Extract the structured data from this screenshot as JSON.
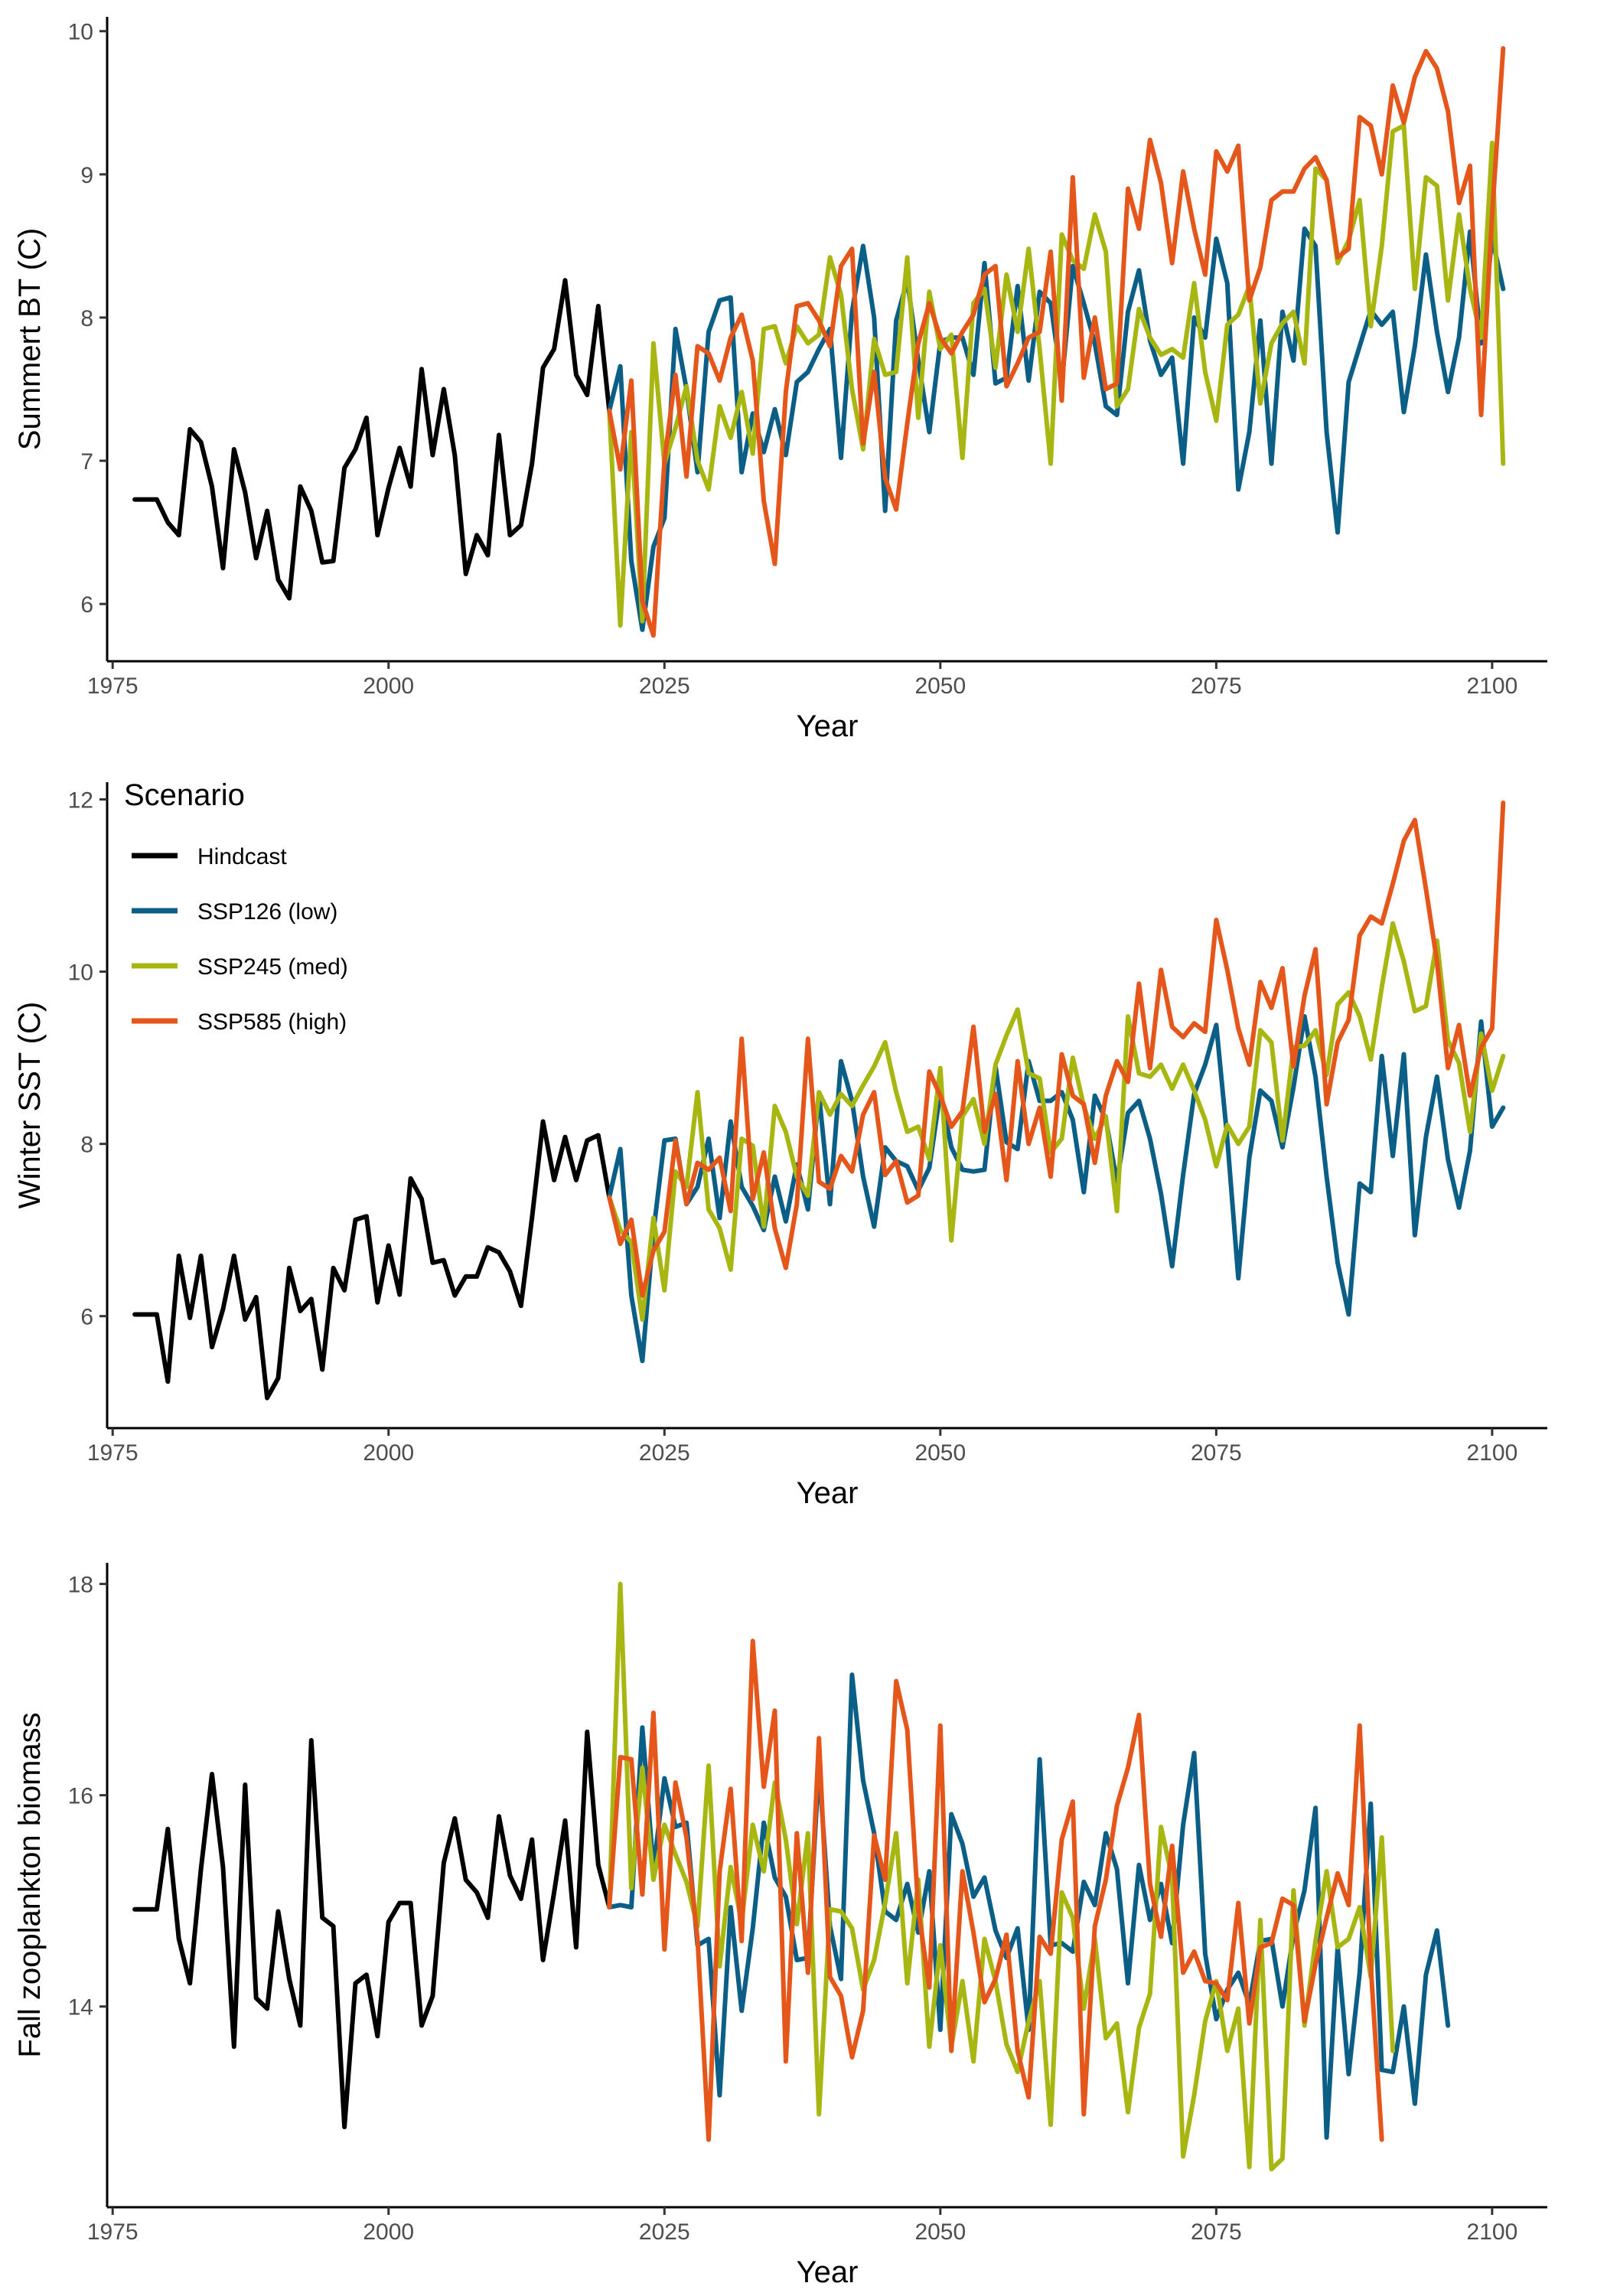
{
  "colors": {
    "Hindcast": "#000000",
    "SSP126 (low)": "#0b5e86",
    "SSP245 (med)": "#a8b611",
    "SSP585 (high)": "#e5561b"
  },
  "legend": {
    "title": "Scenario",
    "items": [
      "Hindcast",
      "SSP126 (low)",
      "SSP245 (med)",
      "SSP585 (high)"
    ]
  },
  "chart_data": [
    {
      "type": "line",
      "xlabel": "Year",
      "ylabel": "Summert BT (C)",
      "xlim": [
        1974.5,
        2105
      ],
      "ylim": [
        5.6,
        10.1
      ],
      "xticks": [
        1975,
        2000,
        2025,
        2050,
        2075,
        2100
      ],
      "yticks": [
        6,
        7,
        8,
        9,
        10
      ],
      "series": [
        {
          "name": "Hindcast",
          "x_start": 1977,
          "values": [
            6.73,
            6.73,
            6.73,
            6.57,
            6.48,
            7.22,
            7.13,
            6.82,
            6.25,
            7.08,
            6.78,
            6.32,
            6.65,
            6.17,
            6.04,
            6.82,
            6.65,
            6.29,
            6.3,
            6.95,
            7.08,
            7.3,
            6.48,
            6.81,
            7.09,
            6.82,
            7.64,
            7.04,
            7.5,
            7.04,
            6.21,
            6.48,
            6.34,
            7.18,
            6.48,
            6.55,
            6.98,
            7.65,
            7.78,
            8.26,
            7.6,
            7.46,
            8.08,
            7.35
          ]
        },
        {
          "name": "SSP126 (low)",
          "x_start": 2020,
          "values": [
            7.35,
            7.66,
            6.3,
            5.82,
            6.4,
            6.6,
            7.92,
            7.5,
            6.92,
            7.9,
            8.12,
            8.14,
            6.92,
            7.33,
            7.06,
            7.36,
            7.04,
            7.55,
            7.62,
            7.78,
            7.92,
            7.02,
            8.04,
            8.5,
            8.0,
            6.65,
            7.98,
            8.26,
            7.7,
            7.2,
            7.83,
            7.86,
            7.86,
            7.6,
            8.38,
            7.54,
            7.58,
            8.22,
            7.56,
            8.18,
            8.1,
            7.54,
            8.36,
            8.1,
            7.82,
            7.38,
            7.32,
            8.04,
            8.33,
            7.84,
            7.6,
            7.72,
            6.98,
            8.0,
            7.86,
            8.55,
            8.24,
            6.8,
            7.2,
            7.98,
            6.98,
            8.04,
            7.7,
            8.62,
            8.5,
            7.2,
            6.5,
            7.55,
            7.8,
            8.05,
            7.95,
            8.04,
            7.34,
            7.8,
            8.44,
            7.9,
            7.48,
            7.86,
            8.6,
            7.82,
            8.56,
            8.2
          ]
        },
        {
          "name": "SSP245 (med)",
          "x_start": 2020,
          "values": [
            7.35,
            5.85,
            7.2,
            5.88,
            7.82,
            6.98,
            7.23,
            7.52,
            7.0,
            6.8,
            7.38,
            7.16,
            7.48,
            7.05,
            7.92,
            7.94,
            7.68,
            7.94,
            7.82,
            7.88,
            8.42,
            8.16,
            7.5,
            7.08,
            7.85,
            7.6,
            7.62,
            8.42,
            7.3,
            8.18,
            7.78,
            7.88,
            7.02,
            8.1,
            8.2,
            7.65,
            8.3,
            7.9,
            8.48,
            7.78,
            6.98,
            8.58,
            8.4,
            8.34,
            8.72,
            8.46,
            7.38,
            7.5,
            8.06,
            7.86,
            7.74,
            7.78,
            7.72,
            8.24,
            7.62,
            7.28,
            7.95,
            8.02,
            8.22,
            7.4,
            7.82,
            7.96,
            8.04,
            7.68,
            9.04,
            8.96,
            8.38,
            8.54,
            8.82,
            7.94,
            8.5,
            9.3,
            9.34,
            8.2,
            8.98,
            8.92,
            8.12,
            8.72,
            8.2,
            7.86,
            9.22,
            6.98
          ]
        },
        {
          "name": "SSP585 (high)",
          "x_start": 2020,
          "values": [
            7.35,
            6.94,
            7.56,
            6.02,
            5.78,
            7.0,
            7.6,
            6.89,
            7.8,
            7.75,
            7.56,
            7.86,
            8.02,
            7.7,
            6.72,
            6.28,
            7.48,
            8.08,
            8.1,
            7.98,
            7.8,
            8.36,
            8.48,
            7.12,
            7.62,
            6.88,
            6.66,
            7.26,
            7.82,
            8.1,
            7.86,
            7.75,
            7.9,
            8.02,
            8.3,
            8.36,
            7.52,
            7.68,
            7.86,
            7.9,
            8.46,
            7.42,
            8.98,
            7.58,
            8.0,
            7.5,
            7.54,
            8.9,
            8.62,
            9.24,
            8.94,
            8.38,
            9.02,
            8.62,
            8.3,
            9.16,
            9.02,
            9.2,
            8.12,
            8.35,
            8.82,
            8.88,
            8.88,
            9.04,
            9.12,
            8.96,
            8.42,
            8.48,
            9.4,
            9.34,
            9.0,
            9.62,
            9.36,
            9.68,
            9.86,
            9.74,
            9.44,
            8.8,
            9.06,
            7.32,
            8.72,
            9.88
          ]
        }
      ]
    },
    {
      "type": "line",
      "xlabel": "Year",
      "ylabel": "Winter SST  (C)",
      "xlim": [
        1974.5,
        2105
      ],
      "ylim": [
        4.7,
        12.2
      ],
      "xticks": [
        1975,
        2000,
        2025,
        2050,
        2075,
        2100
      ],
      "yticks": [
        6,
        8,
        10,
        12
      ],
      "series": [
        {
          "name": "Hindcast",
          "x_start": 1977,
          "values": [
            6.02,
            6.02,
            6.02,
            5.24,
            6.7,
            5.98,
            6.7,
            5.64,
            6.08,
            6.7,
            5.96,
            6.22,
            5.05,
            5.28,
            6.56,
            6.06,
            6.2,
            5.38,
            6.56,
            6.3,
            7.12,
            7.16,
            6.16,
            6.82,
            6.25,
            7.6,
            7.36,
            6.62,
            6.65,
            6.24,
            6.46,
            6.46,
            6.8,
            6.74,
            6.52,
            6.12,
            7.14,
            8.26,
            7.58,
            8.08,
            7.58,
            8.04,
            8.1,
            7.38
          ]
        },
        {
          "name": "SSP126 (low)",
          "x_start": 2020,
          "values": [
            7.38,
            7.94,
            6.24,
            5.48,
            6.98,
            8.04,
            8.06,
            7.3,
            7.5,
            8.06,
            7.14,
            8.26,
            7.5,
            7.28,
            7.0,
            7.62,
            7.1,
            7.76,
            7.24,
            8.58,
            7.3,
            8.96,
            8.5,
            7.62,
            7.04,
            7.96,
            7.8,
            7.74,
            7.46,
            7.72,
            8.6,
            7.96,
            7.7,
            7.68,
            7.7,
            8.9,
            8.02,
            7.94,
            8.96,
            8.5,
            8.5,
            8.6,
            8.28,
            7.44,
            8.56,
            8.28,
            7.56,
            8.36,
            8.5,
            8.06,
            7.42,
            6.58,
            7.64,
            8.58,
            8.92,
            9.38,
            8.06,
            6.44,
            7.84,
            8.62,
            8.5,
            7.96,
            8.66,
            9.48,
            8.78,
            7.62,
            6.62,
            6.02,
            7.54,
            7.44,
            9.02,
            7.86,
            9.04,
            6.94,
            8.08,
            8.78,
            7.82,
            7.26,
            7.92,
            9.42,
            8.2,
            8.42
          ]
        },
        {
          "name": "SSP245 (med)",
          "x_start": 2020,
          "values": [
            7.38,
            7.0,
            6.86,
            5.96,
            7.14,
            6.3,
            7.68,
            7.5,
            8.6,
            7.24,
            7.02,
            6.54,
            8.06,
            7.98,
            7.04,
            8.44,
            8.14,
            7.62,
            7.4,
            8.6,
            8.34,
            8.58,
            8.44,
            8.68,
            8.9,
            9.18,
            8.6,
            8.14,
            8.2,
            7.82,
            8.88,
            6.88,
            8.32,
            8.52,
            8.0,
            8.92,
            9.26,
            9.56,
            8.82,
            8.76,
            7.9,
            8.06,
            9.0,
            8.44,
            8.06,
            8.32,
            7.22,
            9.48,
            8.82,
            8.78,
            8.92,
            8.64,
            8.92,
            8.62,
            8.28,
            7.74,
            8.22,
            8.0,
            8.2,
            9.32,
            9.18,
            8.04,
            9.12,
            9.14,
            9.32,
            8.8,
            9.62,
            9.76,
            9.48,
            8.98,
            9.82,
            10.56,
            10.12,
            9.54,
            9.6,
            10.36,
            9.2,
            8.94,
            8.14,
            9.28,
            8.62,
            9.02
          ]
        },
        {
          "name": "SSP585 (high)",
          "x_start": 2020,
          "values": [
            7.38,
            6.84,
            7.12,
            6.24,
            6.76,
            6.98,
            8.04,
            7.3,
            7.78,
            7.7,
            7.84,
            7.22,
            9.22,
            7.36,
            7.9,
            7.02,
            6.56,
            7.3,
            9.22,
            7.56,
            7.48,
            7.86,
            7.68,
            8.34,
            8.6,
            7.64,
            7.8,
            7.32,
            7.4,
            8.84,
            8.56,
            8.2,
            8.38,
            9.36,
            8.14,
            8.58,
            7.58,
            8.96,
            8.0,
            8.42,
            7.62,
            9.04,
            8.56,
            8.46,
            7.78,
            8.56,
            8.96,
            8.72,
            9.86,
            8.88,
            10.02,
            9.36,
            9.24,
            9.4,
            9.3,
            10.6,
            10.02,
            9.34,
            8.92,
            9.88,
            9.58,
            10.04,
            8.9,
            9.72,
            10.26,
            8.46,
            9.18,
            9.44,
            10.42,
            10.64,
            10.56,
            11.02,
            11.52,
            11.76,
            10.96,
            10.12,
            8.88,
            9.38,
            8.56,
            9.12,
            9.34,
            11.96
          ]
        }
      ]
    },
    {
      "type": "line",
      "xlabel": "Year",
      "ylabel": "Fall zooplankton biomass",
      "xlim": [
        1974.5,
        2105
      ],
      "ylim": [
        12.1,
        18.2
      ],
      "xticks": [
        1975,
        2000,
        2025,
        2050,
        2075,
        2100
      ],
      "yticks": [
        14,
        16,
        18
      ],
      "series": [
        {
          "name": "Hindcast",
          "x_start": 1977,
          "values": [
            14.92,
            14.92,
            14.92,
            15.68,
            14.64,
            14.22,
            15.3,
            16.2,
            15.32,
            13.62,
            16.1,
            14.08,
            13.98,
            14.9,
            14.26,
            13.82,
            16.52,
            14.84,
            14.76,
            12.86,
            14.22,
            14.3,
            13.72,
            14.8,
            14.98,
            14.98,
            13.82,
            14.1,
            15.36,
            15.78,
            15.2,
            15.08,
            14.84,
            15.8,
            15.24,
            15.02,
            15.58,
            14.44,
            15.08,
            15.76,
            14.56,
            16.6,
            15.34,
            14.94
          ]
        },
        {
          "name": "SSP126 (low)",
          "x_start": 2020,
          "values": [
            14.94,
            14.96,
            14.94,
            16.64,
            15.3,
            16.16,
            15.7,
            15.74,
            14.58,
            14.64,
            13.16,
            14.94,
            13.96,
            14.74,
            15.74,
            15.22,
            15.04,
            14.44,
            14.46,
            16.28,
            14.76,
            14.26,
            17.14,
            16.14,
            15.64,
            14.9,
            14.82,
            15.16,
            14.7,
            15.28,
            13.78,
            15.82,
            15.54,
            15.04,
            15.22,
            14.72,
            14.46,
            14.74,
            13.78,
            16.34,
            14.58,
            14.6,
            14.52,
            15.18,
            14.96,
            15.64,
            15.3,
            14.22,
            15.34,
            14.82,
            15.16,
            14.6,
            15.72,
            16.4,
            14.5,
            13.88,
            14.16,
            14.32,
            14.02,
            14.62,
            14.64,
            14.0,
            14.68,
            15.1,
            15.88,
            12.76,
            14.56,
            13.36,
            14.32,
            15.92,
            13.4,
            13.38,
            14.0,
            13.08,
            14.3,
            14.72,
            13.82
          ]
        },
        {
          "name": "SSP245 (med)",
          "x_start": 2020,
          "values": [
            14.94,
            18.0,
            15.12,
            16.26,
            15.2,
            15.72,
            15.44,
            15.18,
            14.76,
            16.28,
            14.38,
            15.32,
            14.8,
            15.72,
            15.28,
            16.12,
            15.58,
            14.78,
            15.64,
            12.98,
            14.92,
            14.9,
            14.74,
            14.16,
            14.44,
            14.98,
            15.64,
            14.22,
            15.2,
            13.62,
            14.58,
            13.62,
            14.24,
            13.48,
            14.64,
            14.24,
            13.64,
            13.38,
            13.86,
            14.24,
            12.88,
            15.08,
            14.84,
            13.98,
            14.64,
            13.7,
            13.84,
            13.0,
            13.8,
            14.12,
            15.7,
            15.22,
            12.58,
            13.16,
            13.86,
            14.24,
            13.58,
            13.98,
            12.48,
            14.82,
            12.46,
            12.56,
            15.1,
            13.82,
            14.62,
            15.28,
            14.56,
            14.64,
            14.94,
            14.28,
            15.6,
            13.58
          ]
        },
        {
          "name": "SSP585 (high)",
          "x_start": 2020,
          "values": [
            14.94,
            16.36,
            16.34,
            15.06,
            16.78,
            14.54,
            16.12,
            15.6,
            14.64,
            12.74,
            15.28,
            16.06,
            14.62,
            17.46,
            16.08,
            16.8,
            13.48,
            15.64,
            14.32,
            16.54,
            14.28,
            14.1,
            13.52,
            13.96,
            15.62,
            15.2,
            17.08,
            16.62,
            14.92,
            14.18,
            16.66,
            13.58,
            15.28,
            14.7,
            14.04,
            14.26,
            14.68,
            13.58,
            13.14,
            14.66,
            14.5,
            15.58,
            15.94,
            12.98,
            14.76,
            15.2,
            15.9,
            16.26,
            16.76,
            15.16,
            14.66,
            15.52,
            14.32,
            14.52,
            14.24,
            14.22,
            14.06,
            14.98,
            13.84,
            14.56,
            14.6,
            15.02,
            14.96,
            13.86,
            14.4,
            14.84,
            15.26,
            14.96,
            16.66,
            14.38,
            12.74
          ]
        }
      ]
    }
  ]
}
